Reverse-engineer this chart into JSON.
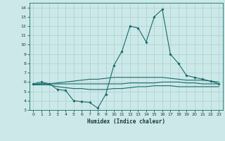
{
  "title": "",
  "xlabel": "Humidex (Indice chaleur)",
  "ylabel": "",
  "bg_color": "#cce8e8",
  "grid_color": "#b0d4d4",
  "line_color": "#1a6b6b",
  "xlim": [
    -0.5,
    23.5
  ],
  "ylim": [
    3,
    14.5
  ],
  "xticks": [
    0,
    1,
    2,
    3,
    4,
    5,
    6,
    7,
    8,
    9,
    10,
    11,
    12,
    13,
    14,
    15,
    16,
    17,
    18,
    19,
    20,
    21,
    22,
    23
  ],
  "yticks": [
    3,
    4,
    5,
    6,
    7,
    8,
    9,
    10,
    11,
    12,
    13,
    14
  ],
  "line1_x": [
    0,
    1,
    2,
    3,
    4,
    5,
    6,
    7,
    8,
    9,
    10,
    11,
    12,
    13,
    14,
    15,
    16,
    17,
    18,
    19,
    20,
    21,
    22,
    23
  ],
  "line1_y": [
    5.8,
    6.0,
    5.8,
    5.2,
    5.1,
    4.0,
    3.9,
    3.8,
    3.2,
    4.7,
    7.8,
    9.3,
    12.0,
    11.8,
    10.3,
    13.0,
    13.8,
    9.0,
    8.0,
    6.7,
    6.5,
    6.3,
    6.1,
    5.8
  ],
  "line2_x": [
    0,
    1,
    2,
    3,
    4,
    5,
    6,
    7,
    8,
    9,
    10,
    11,
    12,
    13,
    14,
    15,
    16,
    17,
    18,
    19,
    20,
    21,
    22,
    23
  ],
  "line2_y": [
    5.7,
    5.8,
    5.8,
    5.9,
    6.0,
    6.1,
    6.2,
    6.3,
    6.3,
    6.4,
    6.5,
    6.5,
    6.5,
    6.5,
    6.5,
    6.5,
    6.5,
    6.4,
    6.3,
    6.2,
    6.2,
    6.2,
    6.1,
    6.0
  ],
  "line3_x": [
    0,
    1,
    2,
    3,
    4,
    5,
    6,
    7,
    8,
    9,
    10,
    11,
    12,
    13,
    14,
    15,
    16,
    17,
    18,
    19,
    20,
    21,
    22,
    23
  ],
  "line3_y": [
    5.8,
    5.8,
    5.8,
    5.8,
    5.8,
    5.8,
    5.8,
    5.8,
    5.8,
    5.8,
    5.8,
    5.8,
    5.9,
    5.9,
    5.9,
    5.9,
    6.0,
    6.0,
    6.0,
    5.9,
    5.9,
    5.8,
    5.8,
    5.8
  ],
  "line4_x": [
    0,
    1,
    2,
    3,
    4,
    5,
    6,
    7,
    8,
    9,
    10,
    11,
    12,
    13,
    14,
    15,
    16,
    17,
    18,
    19,
    20,
    21,
    22,
    23
  ],
  "line4_y": [
    5.7,
    5.7,
    5.7,
    5.5,
    5.4,
    5.3,
    5.3,
    5.2,
    5.2,
    5.2,
    5.3,
    5.3,
    5.4,
    5.5,
    5.5,
    5.6,
    5.6,
    5.6,
    5.5,
    5.5,
    5.5,
    5.5,
    5.5,
    5.5
  ]
}
